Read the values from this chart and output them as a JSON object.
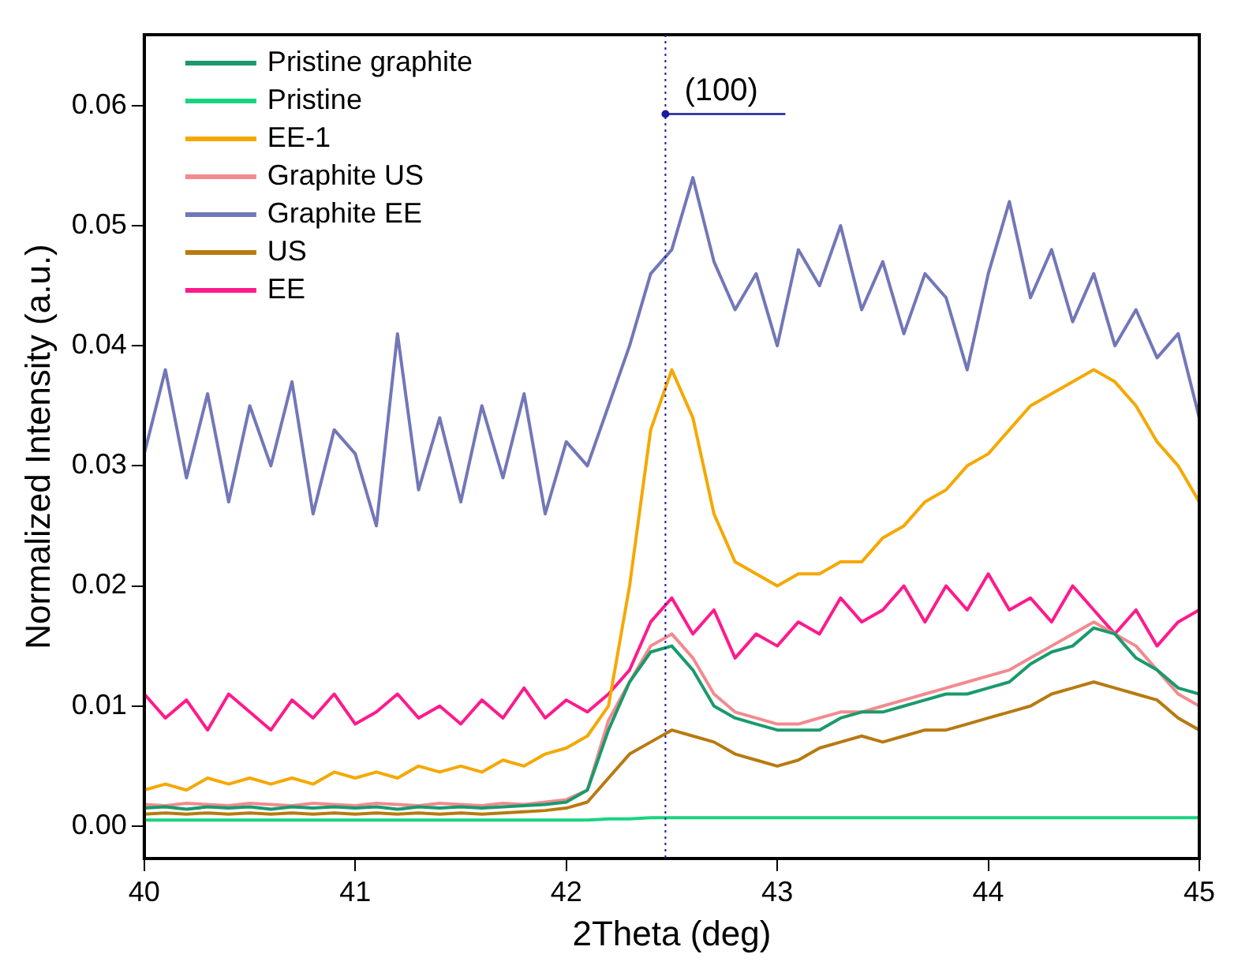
{
  "chart_data": {
    "type": "line",
    "xlabel": "2Theta (deg)",
    "ylabel": "Normalized Intensity (a.u.)",
    "x": [
      40,
      40.1,
      40.2,
      40.3,
      40.4,
      40.5,
      40.6,
      40.7,
      40.8,
      40.9,
      41,
      41.1,
      41.2,
      41.3,
      41.4,
      41.5,
      41.6,
      41.7,
      41.8,
      41.9,
      42,
      42.1,
      42.2,
      42.3,
      42.4,
      42.5,
      42.6,
      42.7,
      42.8,
      42.9,
      43,
      43.1,
      43.2,
      43.3,
      43.4,
      43.5,
      43.6,
      43.7,
      43.8,
      43.9,
      44,
      44.1,
      44.2,
      44.3,
      44.4,
      44.5,
      44.6,
      44.7,
      44.8,
      44.9,
      45
    ],
    "xlim": [
      40,
      45
    ],
    "xticks": [
      40,
      41,
      42,
      43,
      44,
      45
    ],
    "ylim": [
      -0.0027,
      0.0659
    ],
    "yticks": [
      {
        "value": 0,
        "label": "0.00"
      },
      {
        "value": 0.01,
        "label": "0.01"
      },
      {
        "value": 0.02,
        "label": "0.02"
      },
      {
        "value": 0.03,
        "label": "0.03"
      },
      {
        "value": 0.04,
        "label": "0.04"
      },
      {
        "value": 0.05,
        "label": "0.05"
      },
      {
        "value": 0.06,
        "label": "0.06"
      }
    ],
    "grid": false,
    "legend": "top left",
    "line_style": "solid",
    "marker": "none",
    "ref_lines": [
      {
        "axis": "x",
        "value": 42.47,
        "color": "#1a1aa0",
        "line_style": "dotted"
      }
    ],
    "annotations": [
      {
        "text": "(100)",
        "x": 42.47,
        "y": 0.0593
      }
    ],
    "series": [
      {
        "name": "Pristine graphite",
        "color": "#1a9a6c",
        "values": [
          0.0015,
          0.0016,
          0.0014,
          0.0016,
          0.0015,
          0.0016,
          0.0014,
          0.0016,
          0.0015,
          0.0016,
          0.0015,
          0.0016,
          0.0014,
          0.0016,
          0.0015,
          0.0016,
          0.0015,
          0.0016,
          0.0017,
          0.0018,
          0.002,
          0.003,
          0.008,
          0.012,
          0.0145,
          0.015,
          0.013,
          0.01,
          0.009,
          0.0085,
          0.008,
          0.008,
          0.008,
          0.009,
          0.0095,
          0.0095,
          0.01,
          0.0105,
          0.011,
          0.011,
          0.0115,
          0.012,
          0.0135,
          0.0145,
          0.015,
          0.0165,
          0.016,
          0.014,
          0.013,
          0.0115,
          0.011
        ]
      },
      {
        "name": "Pristine",
        "color": "#19d47e",
        "values": [
          0.0005,
          0.0005,
          0.0005,
          0.0005,
          0.0005,
          0.0005,
          0.0005,
          0.0005,
          0.0005,
          0.0005,
          0.0005,
          0.0005,
          0.0005,
          0.0005,
          0.0005,
          0.0005,
          0.0005,
          0.0005,
          0.0005,
          0.0005,
          0.0005,
          0.0005,
          0.0006,
          0.0006,
          0.0007,
          0.0007,
          0.0007,
          0.0007,
          0.0007,
          0.0007,
          0.0007,
          0.0007,
          0.0007,
          0.0007,
          0.0007,
          0.0007,
          0.0007,
          0.0007,
          0.0007,
          0.0007,
          0.0007,
          0.0007,
          0.0007,
          0.0007,
          0.0007,
          0.0007,
          0.0007,
          0.0007,
          0.0007,
          0.0007,
          0.0007
        ]
      },
      {
        "name": "EE-1",
        "color": "#f5a800",
        "values": [
          0.003,
          0.0035,
          0.003,
          0.004,
          0.0035,
          0.004,
          0.0035,
          0.004,
          0.0035,
          0.0045,
          0.004,
          0.0045,
          0.004,
          0.005,
          0.0045,
          0.005,
          0.0045,
          0.0055,
          0.005,
          0.006,
          0.0065,
          0.0075,
          0.01,
          0.02,
          0.033,
          0.038,
          0.034,
          0.026,
          0.022,
          0.021,
          0.02,
          0.021,
          0.021,
          0.022,
          0.022,
          0.024,
          0.025,
          0.027,
          0.028,
          0.03,
          0.031,
          0.033,
          0.035,
          0.036,
          0.037,
          0.038,
          0.037,
          0.035,
          0.032,
          0.03,
          0.027
        ]
      },
      {
        "name": "Graphite US",
        "color": "#f28a8f",
        "values": [
          0.0018,
          0.0017,
          0.0019,
          0.0018,
          0.0017,
          0.0019,
          0.0018,
          0.0017,
          0.0019,
          0.0018,
          0.0017,
          0.0019,
          0.0018,
          0.0017,
          0.0019,
          0.0018,
          0.0017,
          0.0019,
          0.0018,
          0.002,
          0.0022,
          0.003,
          0.0088,
          0.012,
          0.015,
          0.016,
          0.014,
          0.011,
          0.0095,
          0.009,
          0.0085,
          0.0085,
          0.009,
          0.0095,
          0.0095,
          0.01,
          0.0105,
          0.011,
          0.0115,
          0.012,
          0.0125,
          0.013,
          0.014,
          0.015,
          0.016,
          0.017,
          0.016,
          0.015,
          0.013,
          0.011,
          0.01
        ]
      },
      {
        "name": "Graphite EE",
        "color": "#7277b8",
        "values": [
          0.031,
          0.038,
          0.029,
          0.036,
          0.027,
          0.035,
          0.03,
          0.037,
          0.026,
          0.033,
          0.031,
          0.025,
          0.041,
          0.028,
          0.034,
          0.027,
          0.035,
          0.029,
          0.036,
          0.026,
          0.032,
          0.03,
          0.035,
          0.04,
          0.046,
          0.048,
          0.054,
          0.047,
          0.043,
          0.046,
          0.04,
          0.048,
          0.045,
          0.05,
          0.043,
          0.047,
          0.041,
          0.046,
          0.044,
          0.038,
          0.046,
          0.052,
          0.044,
          0.048,
          0.042,
          0.046,
          0.04,
          0.043,
          0.039,
          0.041,
          0.034
        ]
      },
      {
        "name": "US",
        "color": "#b87a10",
        "values": [
          0.001,
          0.0011,
          0.001,
          0.0011,
          0.001,
          0.0011,
          0.001,
          0.0011,
          0.001,
          0.0011,
          0.001,
          0.0011,
          0.001,
          0.0011,
          0.001,
          0.0011,
          0.001,
          0.0011,
          0.0012,
          0.0013,
          0.0015,
          0.002,
          0.004,
          0.006,
          0.007,
          0.008,
          0.0075,
          0.007,
          0.006,
          0.0055,
          0.005,
          0.0055,
          0.0065,
          0.007,
          0.0075,
          0.007,
          0.0075,
          0.008,
          0.008,
          0.0085,
          0.009,
          0.0095,
          0.01,
          0.011,
          0.0115,
          0.012,
          0.0115,
          0.011,
          0.0105,
          0.009,
          0.008
        ]
      },
      {
        "name": "EE",
        "color": "#ff1a8c",
        "values": [
          0.011,
          0.009,
          0.0105,
          0.008,
          0.011,
          0.0095,
          0.008,
          0.0105,
          0.009,
          0.011,
          0.0085,
          0.0095,
          0.011,
          0.009,
          0.01,
          0.0085,
          0.0105,
          0.009,
          0.0115,
          0.009,
          0.0105,
          0.0095,
          0.011,
          0.013,
          0.017,
          0.019,
          0.016,
          0.018,
          0.014,
          0.016,
          0.015,
          0.017,
          0.016,
          0.019,
          0.017,
          0.018,
          0.02,
          0.017,
          0.02,
          0.018,
          0.021,
          0.018,
          0.019,
          0.017,
          0.02,
          0.018,
          0.016,
          0.018,
          0.015,
          0.017,
          0.018
        ]
      }
    ]
  }
}
